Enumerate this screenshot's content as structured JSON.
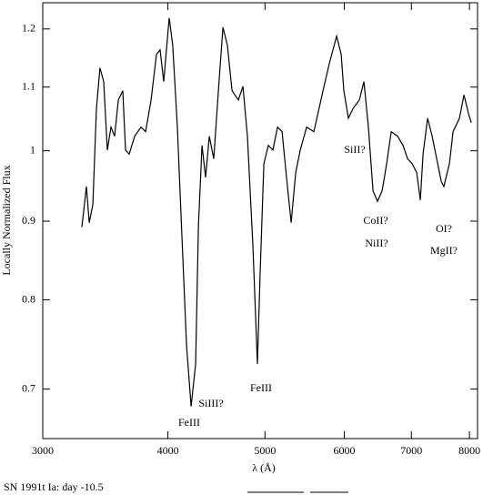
{
  "chart_data": {
    "type": "line",
    "ylabel": "Locally Normalized Flux",
    "xlabel": "λ (Å)",
    "footer": "SN 1991t Ia:  day -10.5",
    "xscale": "log",
    "yscale": "log",
    "xlim": [
      3000,
      8150
    ],
    "ylim": [
      0.65,
      1.248
    ],
    "xticks": [
      3000,
      4000,
      5000,
      6000,
      7000,
      8000
    ],
    "yticks": [
      0.7,
      0.8,
      0.9,
      1,
      1.1,
      1.2
    ],
    "annotations": [
      "SiII?",
      "CoII?",
      "NiII?",
      "OI?",
      "MgII?",
      "SiIII?",
      "FeIII",
      "FeIII"
    ],
    "series": [
      {
        "color": "#000000",
        "x": [
          3282,
          3317,
          3338,
          3366,
          3394,
          3422,
          3451,
          3480,
          3509,
          3539,
          3569,
          3606,
          3629,
          3659,
          3706,
          3760,
          3800,
          3848,
          3896,
          3929,
          3962,
          4012,
          4045,
          4088,
          4131,
          4175,
          4219,
          4263,
          4290,
          4326,
          4362,
          4399,
          4445,
          4492,
          4539,
          4586,
          4635,
          4703,
          4753,
          4802,
          4863,
          4914,
          4945,
          4987,
          5039,
          5092,
          5146,
          5200,
          5254,
          5310,
          5366,
          5422,
          5502,
          5595,
          5713,
          5797,
          5895,
          5957,
          5994,
          6057,
          6121,
          6211,
          6277,
          6342,
          6409,
          6476,
          6545,
          6614,
          6683,
          6782,
          6867,
          6940,
          7012,
          7086,
          7145,
          7190,
          7266,
          7342,
          7420,
          7497,
          7544,
          7640,
          7704,
          7818,
          7900,
          7983,
          8033
        ],
        "values": [
          0.892,
          0.948,
          0.898,
          0.923,
          1.065,
          1.132,
          1.109,
          1.001,
          1.036,
          1.022,
          1.079,
          1.094,
          1.001,
          0.995,
          1.022,
          1.036,
          1.029,
          1.079,
          1.155,
          1.163,
          1.109,
          1.22,
          1.171,
          1.036,
          0.88,
          0.747,
          0.682,
          0.727,
          0.892,
          1.008,
          0.961,
          1.022,
          0.988,
          1.094,
          1.203,
          1.171,
          1.094,
          1.079,
          1.101,
          1.022,
          0.868,
          0.727,
          0.833,
          0.981,
          1.008,
          1.001,
          1.036,
          1.029,
          0.961,
          0.898,
          0.968,
          1.001,
          1.036,
          1.029,
          1.094,
          1.14,
          1.187,
          1.155,
          1.094,
          1.05,
          1.065,
          1.079,
          1.109,
          1.036,
          0.942,
          0.927,
          0.942,
          0.981,
          1.029,
          1.022,
          1.008,
          0.988,
          0.981,
          0.968,
          0.929,
          0.995,
          1.05,
          1.022,
          0.988,
          0.955,
          0.948,
          0.981,
          1.029,
          1.05,
          1.087,
          1.057,
          1.043
        ]
      }
    ]
  }
}
